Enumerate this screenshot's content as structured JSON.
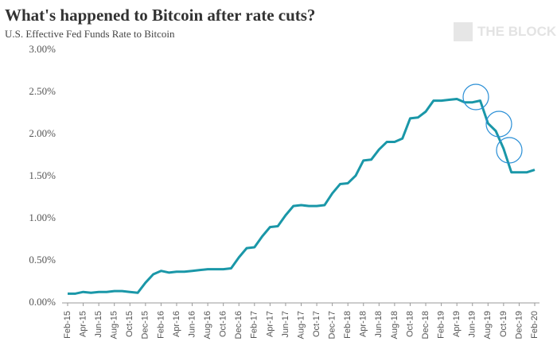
{
  "chart_data": {
    "type": "line",
    "title": "What's happened to Bitcoin after rate cuts?",
    "subtitle": "U.S. Effective Fed Funds Rate to Bitcoin",
    "watermark": "THE BLOCK",
    "categories": [
      "Feb-15",
      null,
      "Apr-15",
      null,
      "Jun-15",
      null,
      "Aug-15",
      null,
      "Oct-15",
      null,
      "Dec-15",
      null,
      "Feb-16",
      null,
      "Apr-16",
      null,
      "Jun-16",
      null,
      "Aug-16",
      null,
      "Oct-16",
      null,
      "Dec-16",
      null,
      "Feb-17",
      null,
      "Apr-17",
      null,
      "Jun-17",
      null,
      "Aug-17",
      null,
      "Oct-17",
      null,
      "Dec-17",
      null,
      "Feb-18",
      null,
      "Apr-18",
      null,
      "Jun-18",
      null,
      "Aug-18",
      null,
      "Oct-18",
      null,
      "Dec-18",
      null,
      "Feb-19",
      null,
      "Apr-19",
      null,
      "Jun-19",
      null,
      "Aug-19",
      null,
      "Oct-19",
      null,
      "Dec-19",
      null,
      "Feb-20"
    ],
    "series": [
      {
        "name": "Effective Fed Funds Rate",
        "color": "#1a97a8",
        "values": [
          0.11,
          0.11,
          0.13,
          0.12,
          0.13,
          0.13,
          0.14,
          0.14,
          0.13,
          0.12,
          0.24,
          0.34,
          0.38,
          0.36,
          0.37,
          0.37,
          0.38,
          0.39,
          0.4,
          0.4,
          0.4,
          0.41,
          0.54,
          0.65,
          0.66,
          0.79,
          0.9,
          0.91,
          1.04,
          1.15,
          1.16,
          1.15,
          1.15,
          1.16,
          1.3,
          1.41,
          1.42,
          1.51,
          1.69,
          1.7,
          1.82,
          1.91,
          1.91,
          1.95,
          2.19,
          2.2,
          2.27,
          2.4,
          2.4,
          2.41,
          2.42,
          2.38,
          2.38,
          2.4,
          2.13,
          2.04,
          1.83,
          1.55,
          1.55,
          1.55,
          1.58
        ]
      }
    ],
    "ylim": [
      0,
      3
    ],
    "yticks": [
      {
        "value": 0,
        "label": "0.00%"
      },
      {
        "value": 0.5,
        "label": "0.50%"
      },
      {
        "value": 1,
        "label": "1.00%"
      },
      {
        "value": 1.5,
        "label": "1.50%"
      },
      {
        "value": 2,
        "label": "2.00%"
      },
      {
        "value": 2.5,
        "label": "2.50%"
      },
      {
        "value": 3,
        "label": "3.00%"
      }
    ]
  }
}
